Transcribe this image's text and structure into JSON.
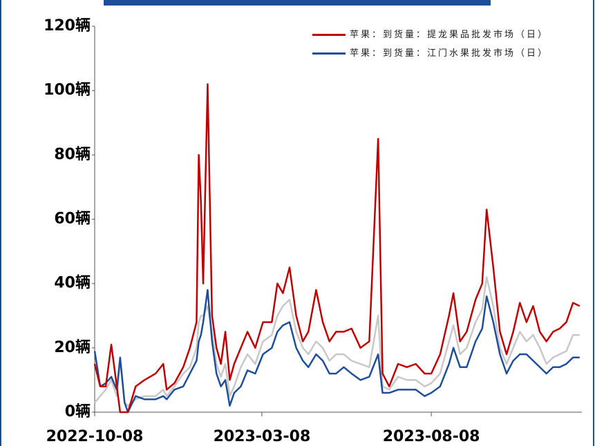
{
  "chart_data": {
    "type": "line",
    "x": [
      "2022-10-08",
      "2022-10-13",
      "2022-10-18",
      "2022-10-23",
      "2022-10-28",
      "2022-10-31",
      "2022-11-04",
      "2022-11-07",
      "2022-11-14",
      "2022-11-22",
      "2022-12-02",
      "2022-12-09",
      "2022-12-12",
      "2022-12-19",
      "2022-12-27",
      "2023-01-02",
      "2023-01-08",
      "2023-01-10",
      "2023-01-12",
      "2023-01-14",
      "2023-01-18",
      "2023-01-22",
      "2023-01-26",
      "2023-01-30",
      "2023-02-03",
      "2023-02-07",
      "2023-02-11",
      "2023-02-17",
      "2023-02-23",
      "2023-03-02",
      "2023-03-09",
      "2023-03-17",
      "2023-03-22",
      "2023-03-27",
      "2023-04-02",
      "2023-04-08",
      "2023-04-14",
      "2023-04-19",
      "2023-04-26",
      "2023-05-02",
      "2023-05-08",
      "2023-05-14",
      "2023-05-21",
      "2023-05-28",
      "2023-06-05",
      "2023-06-13",
      "2023-06-21",
      "2023-06-25",
      "2023-07-01",
      "2023-07-09",
      "2023-07-17",
      "2023-07-25",
      "2023-08-02",
      "2023-08-08",
      "2023-08-16",
      "2023-08-24",
      "2023-08-28",
      "2023-09-03",
      "2023-09-09",
      "2023-09-17",
      "2023-09-23",
      "2023-09-27",
      "2023-10-03",
      "2023-10-09",
      "2023-10-15",
      "2023-10-21",
      "2023-10-27",
      "2023-11-02",
      "2023-11-08",
      "2023-11-14",
      "2023-11-20",
      "2023-11-26",
      "2023-12-02",
      "2023-12-08",
      "2023-12-14",
      "2023-12-20"
    ],
    "series": [
      {
        "name": "苹果：到货量：提龙果品批发市场（日）",
        "color": "#c00000",
        "values": [
          15,
          8,
          8,
          21,
          8,
          0,
          0,
          0,
          8,
          10,
          12,
          15,
          7,
          9,
          14,
          20,
          28,
          80,
          65,
          40,
          102,
          30,
          20,
          15,
          25,
          10,
          15,
          20,
          25,
          20,
          28,
          28,
          40,
          37,
          45,
          30,
          22,
          25,
          38,
          28,
          22,
          25,
          25,
          26,
          20,
          22,
          85,
          12,
          8,
          15,
          14,
          15,
          12,
          12,
          18,
          30,
          37,
          22,
          25,
          35,
          40,
          63,
          45,
          25,
          18,
          25,
          34,
          28,
          33,
          25,
          22,
          25,
          26,
          28,
          34,
          33
        ]
      },
      {
        "name": "苹果：到货量：江门水果批发市场（日）",
        "color": "#1f4e99",
        "values": [
          19,
          8,
          9,
          11,
          7,
          17,
          3,
          0,
          5,
          4,
          4,
          5,
          4,
          7,
          8,
          12,
          16,
          22,
          24,
          28,
          38,
          22,
          12,
          8,
          10,
          2,
          6,
          8,
          13,
          12,
          18,
          20,
          25,
          27,
          28,
          20,
          16,
          14,
          18,
          16,
          12,
          12,
          14,
          12,
          10,
          11,
          18,
          6,
          6,
          7,
          7,
          7,
          5,
          6,
          8,
          15,
          20,
          14,
          14,
          22,
          26,
          36,
          28,
          18,
          12,
          16,
          18,
          18,
          16,
          14,
          12,
          14,
          14,
          15,
          17,
          17
        ]
      },
      {
        "color": "#c8c8c8",
        "values": [
          3,
          5,
          7,
          10,
          5,
          16,
          3,
          2,
          4,
          5,
          5,
          7,
          5,
          8,
          12,
          14,
          20,
          28,
          30,
          30,
          33,
          25,
          15,
          11,
          15,
          5,
          8,
          14,
          18,
          15,
          22,
          24,
          30,
          33,
          35,
          25,
          20,
          18,
          22,
          20,
          16,
          18,
          18,
          16,
          15,
          14,
          30,
          8,
          7,
          11,
          10,
          10,
          8,
          9,
          12,
          22,
          27,
          18,
          20,
          28,
          32,
          42,
          33,
          20,
          15,
          20,
          25,
          22,
          24,
          20,
          15,
          17,
          18,
          19,
          24,
          24
        ]
      }
    ],
    "xlim": [
      "2022-10-08",
      "2023-12-22"
    ],
    "xticks": [
      "2022-10-08",
      "2023-03-08",
      "2023-08-08"
    ],
    "ylim": [
      0,
      120
    ],
    "yticks": [
      {
        "value": 0,
        "label": "0辆"
      },
      {
        "value": 20,
        "label": "20辆"
      },
      {
        "value": 40,
        "label": "40辆"
      },
      {
        "value": 60,
        "label": "60辆"
      },
      {
        "value": 80,
        "label": "80辆"
      },
      {
        "value": 100,
        "label": "100辆"
      },
      {
        "value": 120,
        "label": "120辆"
      }
    ],
    "legend": "upper right"
  }
}
